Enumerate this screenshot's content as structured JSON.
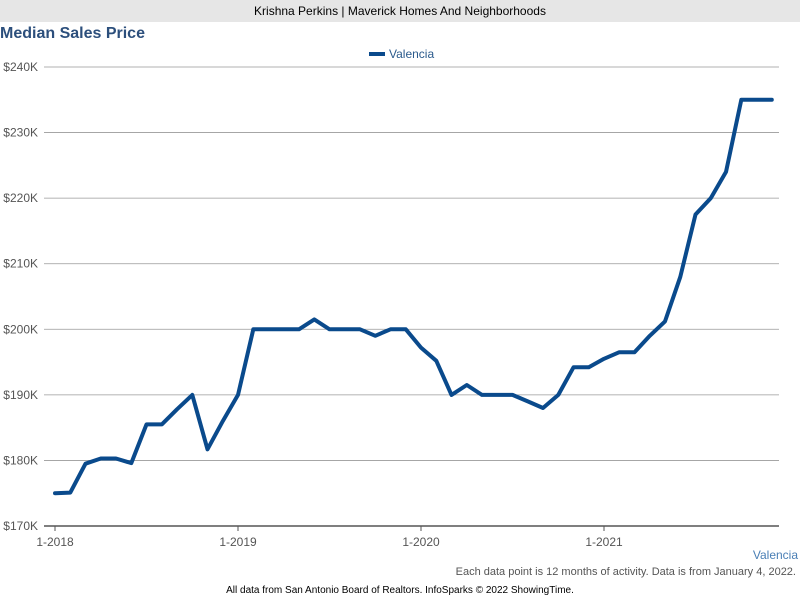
{
  "header": {
    "title": "Krishna Perkins | Maverick Homes And Neighborhoods"
  },
  "footer": {
    "region": "Valencia",
    "note": "Each data point is 12 months of activity. Data is from January 4, 2022.",
    "source": "All data from San Antonio Board of Realtors. InfoSparks © 2022 ShowingTime."
  },
  "colors": {
    "line": "#0a4a8c",
    "grid": "#999999",
    "title": "#2c4f7c",
    "header_bg": "#e6e6e6"
  },
  "chart_data": {
    "type": "line",
    "title": "Median Sales Price",
    "xlabel": "",
    "ylabel": "",
    "ylim": [
      170000,
      240000
    ],
    "grid": true,
    "legend": "top-center",
    "x_ticks": [
      "1-2018",
      "1-2019",
      "1-2020",
      "1-2021"
    ],
    "y_ticks": [
      "$170K",
      "$180K",
      "$190K",
      "$200K",
      "$210K",
      "$220K",
      "$230K",
      "$240K"
    ],
    "x": [
      "2018-01",
      "2018-02",
      "2018-03",
      "2018-04",
      "2018-05",
      "2018-06",
      "2018-07",
      "2018-08",
      "2018-09",
      "2018-10",
      "2018-11",
      "2018-12",
      "2019-01",
      "2019-02",
      "2019-03",
      "2019-04",
      "2019-05",
      "2019-06",
      "2019-07",
      "2019-08",
      "2019-09",
      "2019-10",
      "2019-11",
      "2019-12",
      "2020-01",
      "2020-02",
      "2020-03",
      "2020-04",
      "2020-05",
      "2020-06",
      "2020-07",
      "2020-08",
      "2020-09",
      "2020-10",
      "2020-11",
      "2020-12",
      "2021-01",
      "2021-02",
      "2021-03",
      "2021-04",
      "2021-05",
      "2021-06",
      "2021-07",
      "2021-08",
      "2021-09",
      "2021-10",
      "2021-11",
      "2021-12"
    ],
    "series": [
      {
        "name": "Valencia",
        "values": [
          175000,
          175100,
          179500,
          180300,
          180300,
          179600,
          185500,
          185500,
          187800,
          190000,
          181700,
          186000,
          190000,
          200000,
          200000,
          200000,
          200000,
          201500,
          200000,
          200000,
          200000,
          199000,
          200000,
          200000,
          197200,
          195200,
          190000,
          191500,
          190000,
          190000,
          190000,
          189000,
          188000,
          190000,
          194200,
          194200,
          195500,
          196500,
          196500,
          199000,
          201200,
          208000,
          217500,
          220000,
          224000,
          235000,
          235000,
          235000
        ]
      }
    ]
  }
}
